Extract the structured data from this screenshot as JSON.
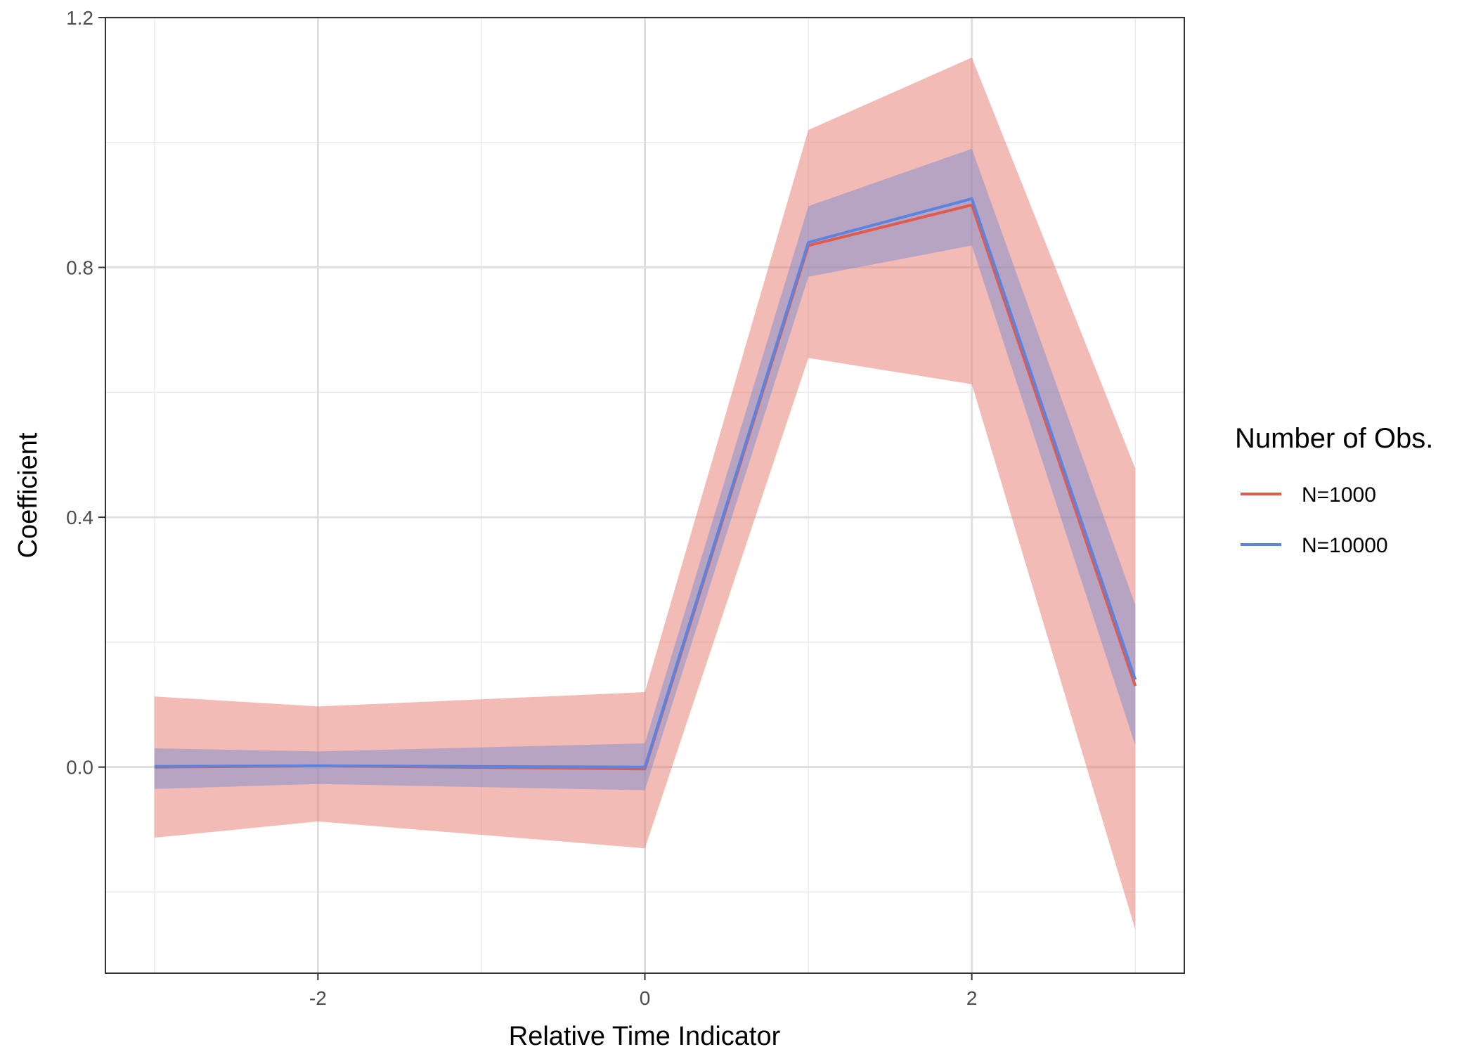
{
  "chart_data": {
    "type": "line",
    "xlabel": "Relative Time Indicator",
    "ylabel": "Coefficient",
    "xlim": [
      -3.3,
      3.3
    ],
    "ylim": [
      -0.33,
      1.2
    ],
    "x_ticks": [
      -2,
      0,
      2
    ],
    "x_tick_labels": [
      "-2",
      "0",
      "2"
    ],
    "y_ticks": [
      0.0,
      0.4,
      0.8,
      1.2
    ],
    "y_tick_labels": [
      "0.0",
      "0.4",
      "0.8",
      "1.2"
    ],
    "x_minor": [
      -3,
      -1,
      1,
      3
    ],
    "y_minor": [
      -0.2,
      0.2,
      0.6,
      1.0
    ],
    "grid": true,
    "legend": {
      "title": "Number of Obs.",
      "position": "right"
    },
    "x": [
      -3,
      -2,
      0,
      1,
      2,
      3
    ],
    "series": [
      {
        "name": "N=1000",
        "color": "#E15A4B",
        "band_color": "#E8786B",
        "values": [
          0.0,
          0.002,
          -0.003,
          0.835,
          0.9,
          0.13
        ],
        "lower": [
          -0.113,
          -0.087,
          -0.13,
          0.655,
          0.613,
          -0.26
        ],
        "upper": [
          0.113,
          0.097,
          0.12,
          1.02,
          1.136,
          0.478
        ]
      },
      {
        "name": "N=10000",
        "color": "#5A84E0",
        "band_color": "#6E87D2",
        "values": [
          0.001,
          0.002,
          0.0,
          0.84,
          0.91,
          0.14
        ],
        "lower": [
          -0.035,
          -0.027,
          -0.037,
          0.785,
          0.835,
          0.035
        ],
        "upper": [
          0.03,
          0.025,
          0.038,
          0.898,
          0.99,
          0.26
        ]
      }
    ]
  }
}
